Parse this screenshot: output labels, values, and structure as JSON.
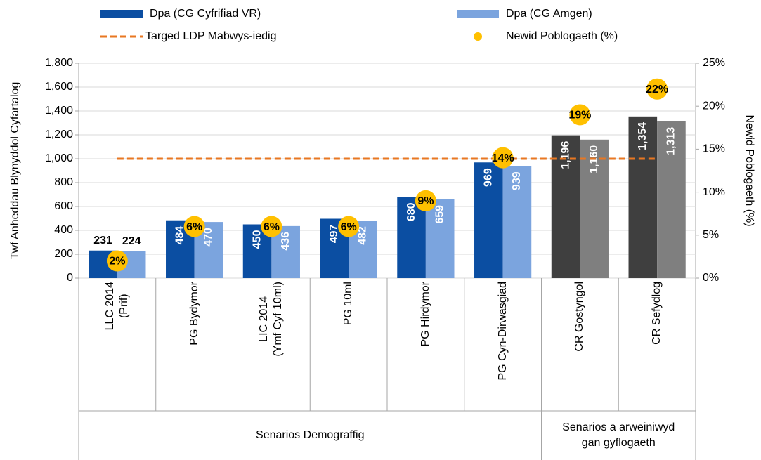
{
  "chart_data": {
    "type": "bar",
    "categories": [
      "LLC 2014\n(Prif)",
      "PG Bydymor",
      "LIC 2014\n(Ymf Cyf 10ml)",
      "PG 10ml",
      "PG Hirdymor",
      "PG Cyn-Dirwasgiad",
      "CR Gostyngol",
      "CR Sefydlog"
    ],
    "groups": [
      {
        "label": "Senarios Demograffig",
        "span": [
          0,
          5
        ]
      },
      {
        "label": "Senarios a arweiniwyd\ngan gyflogaeth",
        "span": [
          6,
          7
        ]
      }
    ],
    "y_label": "Twf Anheddau Blynyddol Cyfartalog",
    "y2_label": "Newid Poblogaeth (%)",
    "ylim": [
      0,
      1800
    ],
    "yticks": [
      0,
      200,
      400,
      600,
      800,
      {
        "value": 1000,
        "label": "1,000"
      },
      {
        "value": 1200,
        "label": "1,200"
      },
      {
        "value": 1400,
        "label": "1,400"
      },
      {
        "value": 1600,
        "label": "1,600"
      },
      {
        "value": 1800,
        "label": "1,800"
      }
    ],
    "y2lim": [
      0,
      25
    ],
    "y2ticks": [
      {
        "value": 0,
        "label": "0%"
      },
      {
        "value": 5,
        "label": "5%"
      },
      {
        "value": 10,
        "label": "10%"
      },
      {
        "value": 15,
        "label": "15%"
      },
      {
        "value": 20,
        "label": "20%"
      },
      {
        "value": 25,
        "label": "25%"
      }
    ],
    "series": [
      {
        "name": "Dpa (CG Cyfrifiad VR)",
        "type": "bar",
        "color": "#0b4ea2",
        "colors": [
          "#0b4ea2",
          "#0b4ea2",
          "#0b4ea2",
          "#0b4ea2",
          "#0b4ea2",
          "#0b4ea2",
          "#3f3f3f",
          "#3f3f3f"
        ],
        "values": [
          231,
          484,
          450,
          497,
          680,
          969,
          1196,
          1354
        ],
        "value_labels": [
          "231",
          "484",
          "450",
          "497",
          "680",
          "969",
          "1,196",
          "1,354"
        ]
      },
      {
        "name": "Dpa (CG Amgen)",
        "type": "bar",
        "color": "#7ba4de",
        "colors": [
          "#7ba4de",
          "#7ba4de",
          "#7ba4de",
          "#7ba4de",
          "#7ba4de",
          "#7ba4de",
          "#7f7f7f",
          "#7f7f7f"
        ],
        "values": [
          224,
          470,
          436,
          482,
          659,
          939,
          1160,
          1313
        ],
        "value_labels": [
          "224",
          "470",
          "436",
          "482",
          "659",
          "939",
          "1,160",
          "1,313"
        ]
      },
      {
        "name": "Targed LDP Mabwys-iedig",
        "type": "line",
        "color": "#e87722",
        "values": [
          1000,
          1000,
          1000,
          1000,
          1000,
          1000,
          1000,
          1000
        ]
      },
      {
        "name": "Newid Poblogaeth (%)",
        "type": "scatter",
        "axis": "y2",
        "color": "#ffc000",
        "values": [
          2,
          6,
          6,
          6,
          9,
          14,
          19,
          22
        ],
        "value_labels": [
          "2%",
          "6%",
          "6%",
          "6%",
          "9%",
          "14%",
          "19%",
          "22%"
        ]
      }
    ]
  }
}
